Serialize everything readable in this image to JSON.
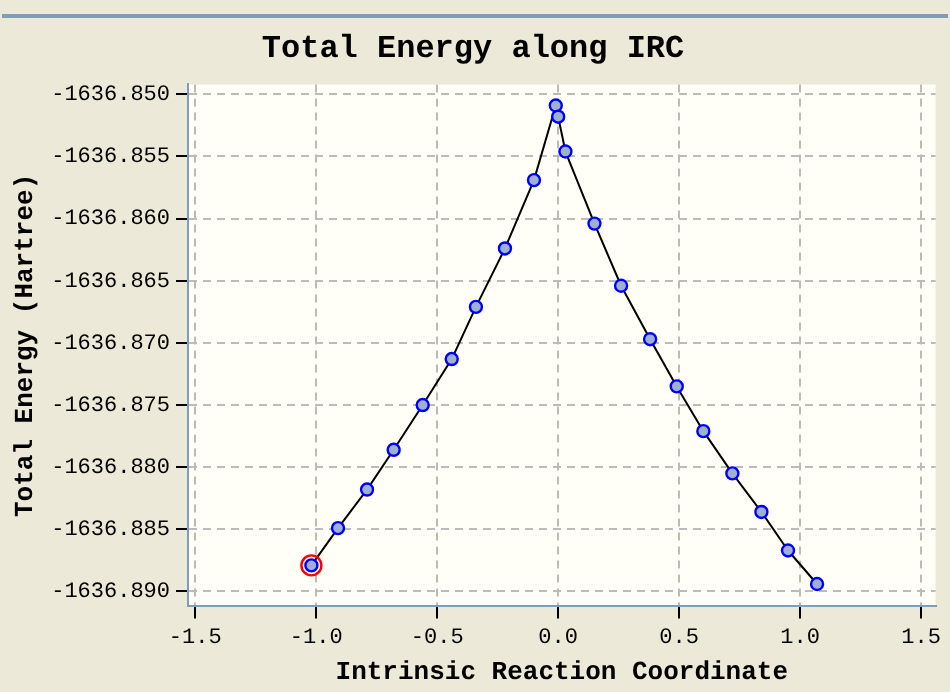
{
  "chart_data": {
    "type": "line",
    "title": "Total Energy along IRC",
    "xlabel": "Intrinsic Reaction Coordinate",
    "ylabel": "Total Energy (Hartree)",
    "xlim": [
      -1.53,
      1.56
    ],
    "xticks": [
      -1.5,
      {
        "value": -1,
        "label": "-1.0"
      },
      -0.5,
      {
        "value": 0,
        "label": "0.0"
      },
      0.5,
      {
        "value": 1,
        "label": "1.0"
      },
      1.5
    ],
    "ylim": [
      -1636.8912,
      -1636.8492
    ],
    "yticks": [
      {
        "value": -1636.85,
        "label": "-1636.850"
      },
      -1636.855,
      {
        "value": -1636.86,
        "label": "-1636.860"
      },
      -1636.865,
      {
        "value": -1636.87,
        "label": "-1636.870"
      },
      -1636.875,
      {
        "value": -1636.88,
        "label": "-1636.880"
      },
      -1636.885,
      {
        "value": -1636.89,
        "label": "-1636.890"
      }
    ],
    "grid": true,
    "marker": "circle",
    "line_style": "solid",
    "series": [
      {
        "color": "#0000ff",
        "x": [
          -1.02,
          -0.91,
          -0.79,
          -0.68,
          -0.56,
          -0.44,
          -0.34,
          -0.22,
          -0.1,
          -0.01,
          0.0,
          0.03,
          0.15,
          0.26,
          0.38,
          0.49,
          0.6,
          0.72,
          0.84,
          0.95,
          1.07
        ],
        "values": [
          -1636.8879,
          -1636.8849,
          -1636.8818,
          -1636.8786,
          -1636.875,
          -1636.8713,
          -1636.8671,
          -1636.8624,
          -1636.8569,
          -1636.8509,
          -1636.8518,
          -1636.8546,
          -1636.8604,
          -1636.8654,
          -1636.8697,
          -1636.8735,
          -1636.8771,
          -1636.8805,
          -1636.8836,
          -1636.8867,
          -1636.8894
        ]
      },
      {
        "type": "scatter",
        "color": "#ff0000",
        "x": [
          -1.02
        ],
        "values": [
          -1636.8879
        ]
      }
    ]
  }
}
